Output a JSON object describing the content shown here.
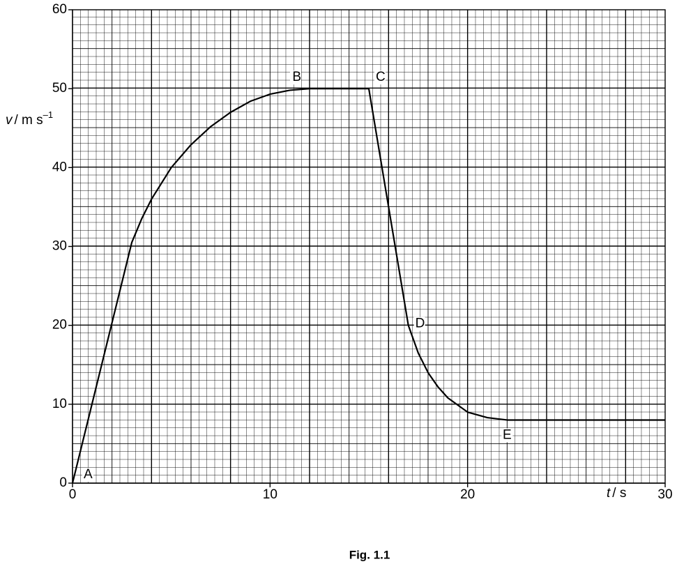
{
  "chart_data": {
    "type": "line",
    "x": [
      0,
      3,
      3.5,
      4,
      5,
      6,
      7,
      8,
      9,
      10,
      11,
      12,
      15,
      17,
      17.5,
      18,
      18.5,
      19,
      20,
      21,
      22,
      30
    ],
    "values": [
      0,
      30.5,
      33.5,
      36,
      40,
      42.9,
      45.2,
      47,
      48.4,
      49.3,
      49.8,
      50,
      50,
      20,
      16.5,
      14,
      12.2,
      10.8,
      9,
      8.3,
      8,
      8
    ],
    "color": "#000000",
    "xlim": [
      0,
      30
    ],
    "ylim": [
      0,
      60
    ],
    "xticks": [
      0,
      10,
      20,
      30
    ],
    "yticks": [
      0,
      10,
      20,
      30,
      40,
      50,
      60
    ],
    "grid": true,
    "ylabel": {
      "symbol": "v",
      "unit": "/ m s",
      "exponent": "–1"
    },
    "xlabel": {
      "symbol": "t",
      "unit": "/ s"
    },
    "annotations": [
      {
        "label": "A",
        "x": 0,
        "y": 0
      },
      {
        "label": "B",
        "x": 12,
        "y": 50
      },
      {
        "label": "C",
        "x": 15,
        "y": 50
      },
      {
        "label": "D",
        "x": 17,
        "y": 20
      },
      {
        "label": "E",
        "x": 22,
        "y": 8
      }
    ],
    "caption": "Fig. 1.1"
  }
}
